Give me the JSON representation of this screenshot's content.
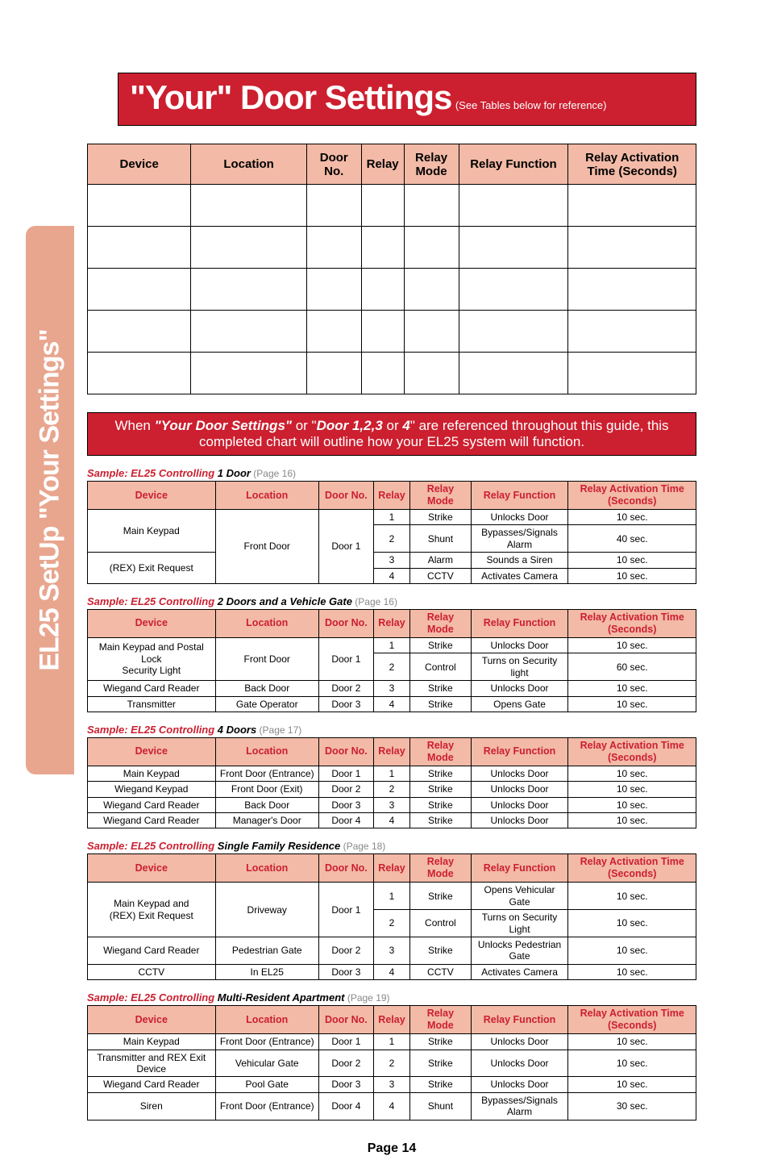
{
  "side_tab": "EL25 SetUp \"Your Settings\"",
  "title": {
    "big": "\"Your\" Door Settings",
    "small": "(See Tables below for reference)"
  },
  "big_headers": [
    "Device",
    "Location",
    "Door No.",
    "Relay",
    "Relay Mode",
    "Relay Function",
    "Relay Activation Time (Seconds)"
  ],
  "big_col_widths": [
    "17%",
    "19%",
    "9%",
    "7%",
    "9%",
    "18%",
    "21%"
  ],
  "big_blank_rows": 5,
  "note": {
    "pre": "When ",
    "em1": "\"Your Door Settings\"",
    "mid": " or \"",
    "em2": "Door 1,2,3",
    "mid2": " or ",
    "em3": "4",
    "post": "\" are referenced throughout this guide, this completed chart will outline how your EL25 system will function."
  },
  "sample_headers": [
    "Device",
    "Location",
    "Door No.",
    "Relay",
    "Relay Mode",
    "Relay Function",
    "Relay Activation Time (Seconds)"
  ],
  "sample_col_widths": [
    "21%",
    "17%",
    "9%",
    "6%",
    "10%",
    "16%",
    "21%"
  ],
  "samples": [
    {
      "caption": {
        "red": "Sample: EL25 Controlling ",
        "bold": "1 Door",
        "grey": " (Page 16)"
      },
      "rows": [
        {
          "device": "Main Keypad",
          "device_rowspan": 2,
          "loc": "Front Door",
          "loc_rowspan": 4,
          "door": "Door 1",
          "door_rowspan": 4,
          "relay": "1",
          "mode": "Strike",
          "func": "Unlocks Door",
          "time": "10 sec."
        },
        {
          "relay": "2",
          "mode": "Shunt",
          "func": "Bypasses/Signals Alarm",
          "time": "40 sec."
        },
        {
          "device": "(REX) Exit Request",
          "device_rowspan": 2,
          "relay": "3",
          "mode": "Alarm",
          "func": "Sounds a Siren",
          "time": "10 sec."
        },
        {
          "relay": "4",
          "mode": "CCTV",
          "func": "Activates Camera",
          "time": "10 sec."
        }
      ]
    },
    {
      "caption": {
        "red": "Sample: EL25 Controlling ",
        "bold": "2 Doors and a Vehicle Gate",
        "grey": " (Page 16)"
      },
      "rows": [
        {
          "device": "Main Keypad and Postal Lock\nSecurity Light",
          "device_rowspan": 2,
          "loc": "Front Door",
          "loc_rowspan": 2,
          "door": "Door 1",
          "door_rowspan": 2,
          "relay": "1",
          "mode": "Strike",
          "func": "Unlocks Door",
          "time": "10 sec."
        },
        {
          "relay": "2",
          "mode": "Control",
          "func": "Turns on Security light",
          "time": "60 sec."
        },
        {
          "device": "Wiegand Card Reader",
          "loc": "Back Door",
          "door": "Door 2",
          "relay": "3",
          "mode": "Strike",
          "func": "Unlocks Door",
          "time": "10 sec."
        },
        {
          "device": "Transmitter",
          "loc": "Gate Operator",
          "door": "Door 3",
          "relay": "4",
          "mode": "Strike",
          "func": "Opens Gate",
          "time": "10 sec."
        }
      ]
    },
    {
      "caption": {
        "red": "Sample: EL25 Controlling ",
        "bold": "4 Doors",
        "grey": " (Page 17)"
      },
      "rows": [
        {
          "device": "Main Keypad",
          "loc": "Front Door (Entrance)",
          "door": "Door 1",
          "relay": "1",
          "mode": "Strike",
          "func": "Unlocks Door",
          "time": "10 sec."
        },
        {
          "device": "Wiegand Keypad",
          "loc": "Front Door (Exit)",
          "door": "Door 2",
          "relay": "2",
          "mode": "Strike",
          "func": "Unlocks Door",
          "time": "10 sec."
        },
        {
          "device": "Wiegand Card Reader",
          "loc": "Back Door",
          "door": "Door 3",
          "relay": "3",
          "mode": "Strike",
          "func": "Unlocks Door",
          "time": "10 sec."
        },
        {
          "device": "Wiegand Card Reader",
          "loc": "Manager's Door",
          "door": "Door 4",
          "relay": "4",
          "mode": "Strike",
          "func": "Unlocks Door",
          "time": "10 sec."
        }
      ]
    },
    {
      "caption": {
        "red": "Sample: EL25 Controlling ",
        "bold": "Single Family Residence",
        "grey": " (Page 18)"
      },
      "rows": [
        {
          "device": "Main Keypad and\n(REX) Exit Request",
          "device_rowspan": 2,
          "loc": "Driveway",
          "loc_rowspan": 2,
          "door": "Door 1",
          "door_rowspan": 2,
          "relay": "1",
          "mode": "Strike",
          "func": "Opens Vehicular Gate",
          "time": "10 sec."
        },
        {
          "relay": "2",
          "mode": "Control",
          "func": "Turns on Security Light",
          "time": "10 sec."
        },
        {
          "device": "Wiegand Card Reader",
          "loc": "Pedestrian Gate",
          "door": "Door 2",
          "relay": "3",
          "mode": "Strike",
          "func": "Unlocks Pedestrian Gate",
          "time": "10 sec."
        },
        {
          "device": "CCTV",
          "loc": "In EL25",
          "door": "Door 3",
          "relay": "4",
          "mode": "CCTV",
          "func": "Activates Camera",
          "time": "10 sec."
        }
      ]
    },
    {
      "caption": {
        "red": "Sample: EL25 Controlling ",
        "bold": "Multi-Resident Apartment",
        "grey": " (Page 19)"
      },
      "rows": [
        {
          "device": "Main Keypad",
          "loc": "Front Door (Entrance)",
          "door": "Door 1",
          "relay": "1",
          "mode": "Strike",
          "func": "Unlocks Door",
          "time": "10 sec."
        },
        {
          "device": "Transmitter and REX Exit Device",
          "loc": "Vehicular Gate",
          "door": "Door 2",
          "relay": "2",
          "mode": "Strike",
          "func": "Unlocks Door",
          "time": "10 sec."
        },
        {
          "device": "Wiegand Card Reader",
          "loc": "Pool Gate",
          "door": "Door 3",
          "relay": "3",
          "mode": "Strike",
          "func": "Unlocks Door",
          "time": "10 sec."
        },
        {
          "device": "Siren",
          "loc": "Front Door (Entrance)",
          "door": "Door 4",
          "relay": "4",
          "mode": "Shunt",
          "func": "Bypasses/Signals Alarm",
          "time": "30 sec."
        }
      ]
    }
  ],
  "page_number": "Page 14"
}
